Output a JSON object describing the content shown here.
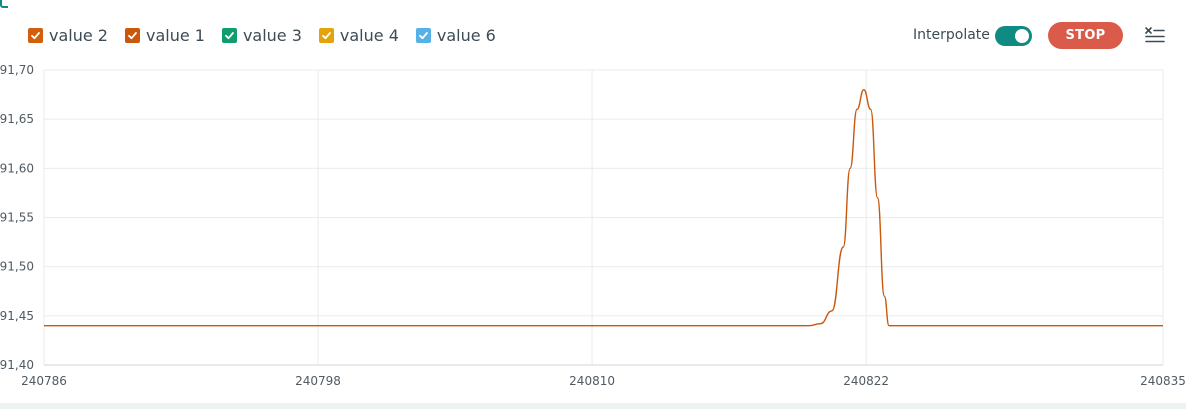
{
  "legend": {
    "items": [
      {
        "label": "value 2",
        "color": "#d35e0b"
      },
      {
        "label": "value 1",
        "color": "#c9580c"
      },
      {
        "label": "value 3",
        "color": "#0f9d6e"
      },
      {
        "label": "value 4",
        "color": "#e3a30c"
      },
      {
        "label": "value 6",
        "color": "#56b2e6"
      }
    ]
  },
  "controls": {
    "interpolate_label": "Interpolate",
    "interpolate_on": true,
    "stop_label": "STOP",
    "clear_icon": "clear-list-icon"
  },
  "chart_data": {
    "type": "line",
    "xlim": [
      240786,
      240835
    ],
    "ylim": [
      91.4,
      91.7
    ],
    "x_ticks": [
      240786,
      240798,
      240810,
      240822,
      240835
    ],
    "x_tick_labels": [
      "240786",
      "240798",
      "240810",
      "240822",
      "240835"
    ],
    "y_ticks": [
      91.4,
      91.45,
      91.5,
      91.55,
      91.6,
      91.65,
      91.7
    ],
    "y_tick_labels": [
      "91,40",
      "91,45",
      "91,50",
      "91,55",
      "91,60",
      "91,65",
      "91,70"
    ],
    "grid": true,
    "legend_position": "top-left",
    "series": [
      {
        "color": "#c9580c",
        "x": [
          240786,
          240798,
          240810,
          240818,
          240819.5,
          240820,
          240820.5,
          240821,
          240821.3,
          240821.6,
          240821.9,
          240822.2,
          240822.5,
          240822.8,
          240823,
          240835
        ],
        "y": [
          91.44,
          91.44,
          91.44,
          91.44,
          91.44,
          91.442,
          91.455,
          91.52,
          91.6,
          91.66,
          91.68,
          91.66,
          91.57,
          91.47,
          91.44,
          91.44
        ]
      }
    ]
  }
}
